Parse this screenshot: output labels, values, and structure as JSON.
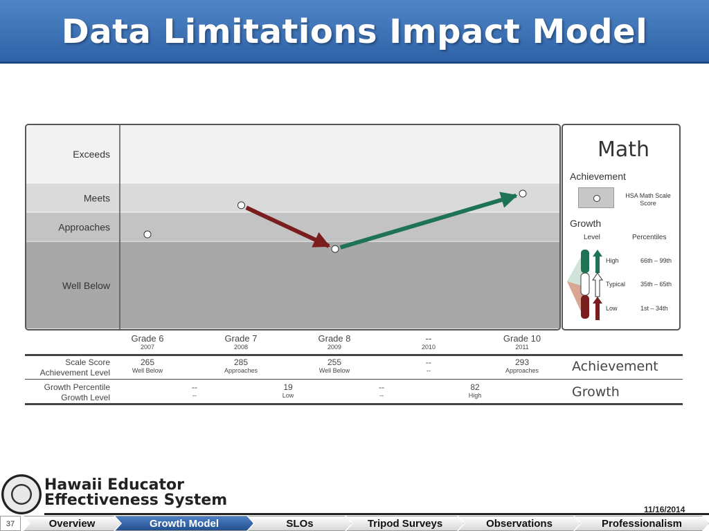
{
  "title": "Data Limitations Impact Model",
  "chart_data": {
    "type": "line",
    "bands": [
      "Exceeds",
      "Meets",
      "Approaches",
      "Well Below"
    ],
    "x": [
      "Grade 6",
      "Grade 7",
      "Grade 8",
      "--",
      "Grade 10"
    ],
    "years": [
      "2007",
      "2008",
      "2009",
      "2010",
      "2011"
    ],
    "scale_scores": [
      265,
      285,
      255,
      null,
      293
    ],
    "achievement_levels": [
      "Well Below",
      "Approaches",
      "Well Below",
      "--",
      "Approaches"
    ],
    "growth_arrows": [
      {
        "from": 1,
        "to": 2,
        "level": "Low"
      },
      {
        "from": 2,
        "to": 4,
        "level": "High"
      }
    ],
    "band_colors": [
      "#f2f2f2",
      "#dadada",
      "#c3c3c3",
      "#a8a8a8"
    ],
    "arrow_colors": {
      "High": "#1e7354",
      "Typical": "#ffffff",
      "Low": "#7a1d1d"
    }
  },
  "legend": {
    "subject": "Math",
    "achievement": "Achievement",
    "hsa_label": "HSA Math Scale Score",
    "growth": "Growth",
    "level_header": "Level",
    "percentile_header": "Percentiles",
    "levels": [
      {
        "level": "High",
        "range": "66th – 99th"
      },
      {
        "level": "Typical",
        "range": "35th – 65th"
      },
      {
        "level": "Low",
        "range": "1st – 34th"
      }
    ]
  },
  "table": {
    "achievement_row_labels": [
      "Scale Score",
      "Achievement Level"
    ],
    "growth_row_labels": [
      "Growth Percentile",
      "Growth Level"
    ],
    "achievement_tag": "Achievement",
    "growth_tag": "Growth",
    "achievement_cells": [
      {
        "value": "265",
        "level": "Well Below"
      },
      {
        "value": "285",
        "level": "Approaches"
      },
      {
        "value": "255",
        "level": "Well Below"
      },
      {
        "value": "--",
        "level": "--"
      },
      {
        "value": "293",
        "level": "Approaches"
      }
    ],
    "growth_cells": [
      {
        "value": "--",
        "level": "--"
      },
      {
        "value": "19",
        "level": "Low"
      },
      {
        "value": "--",
        "level": "--"
      },
      {
        "value": "82",
        "level": "High"
      }
    ]
  },
  "footer": {
    "org_line1": "Hawaii Educator",
    "org_line2": "Effectiveness System",
    "date": "11/16/2014",
    "slide_number": "37"
  },
  "nav": [
    {
      "label": "Overview",
      "active": false
    },
    {
      "label": "Growth Model",
      "active": true
    },
    {
      "label": "SLOs",
      "active": false
    },
    {
      "label": "Tripod Surveys",
      "active": false
    },
    {
      "label": "Observations",
      "active": false
    },
    {
      "label": "Professionalism",
      "active": false
    }
  ]
}
